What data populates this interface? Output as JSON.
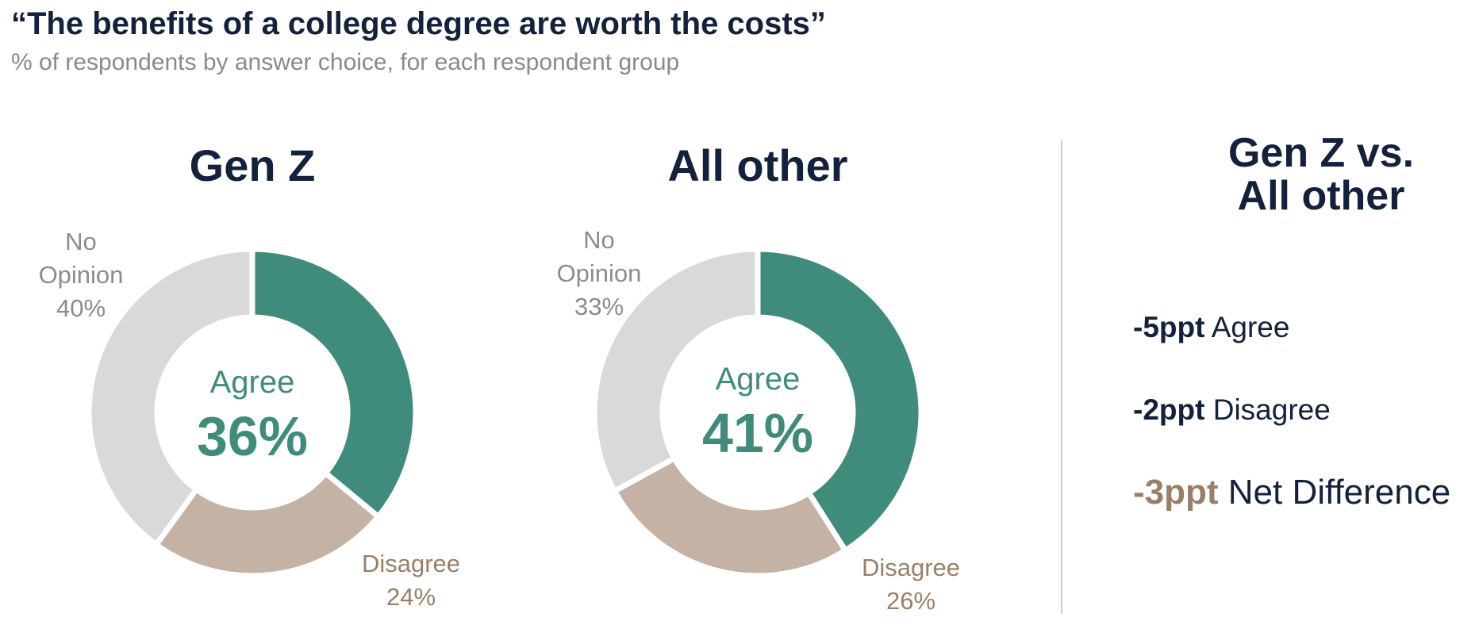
{
  "header": {
    "title": "“The benefits of a college degree are worth the costs”",
    "subtitle": "% of respondents by answer choice, for each respondent group"
  },
  "colors": {
    "agree": "#3f8c7c",
    "disagree": "#c4b2a4",
    "no_opinion": "#d9d9d9",
    "navy": "#13213c",
    "tan_text": "#9a7f68"
  },
  "chart_data": [
    {
      "type": "pie",
      "donut": true,
      "title": "Gen Z",
      "categories": [
        "Agree",
        "Disagree",
        "No Opinion"
      ],
      "values": [
        36,
        24,
        40
      ],
      "labels": {
        "no_opinion": [
          "No",
          "Opinion",
          "40%"
        ],
        "disagree": [
          "Disagree",
          "24%"
        ]
      },
      "center": {
        "label": "Agree",
        "value": "36%"
      }
    },
    {
      "type": "pie",
      "donut": true,
      "title": "All other",
      "categories": [
        "Agree",
        "Disagree",
        "No Opinion"
      ],
      "values": [
        41,
        26,
        33
      ],
      "labels": {
        "no_opinion": [
          "No",
          "Opinion",
          "33%"
        ],
        "disagree": [
          "Disagree",
          "26%"
        ]
      },
      "center": {
        "label": "Agree",
        "value": "41%"
      }
    }
  ],
  "comparison": {
    "title_line1": "Gen Z vs.",
    "title_line2": "All other",
    "rows": [
      {
        "value": "-5ppt",
        "label": "Agree"
      },
      {
        "value": "-2ppt",
        "label": "Disagree"
      },
      {
        "value": "-3ppt",
        "label": "Net Difference"
      }
    ]
  }
}
